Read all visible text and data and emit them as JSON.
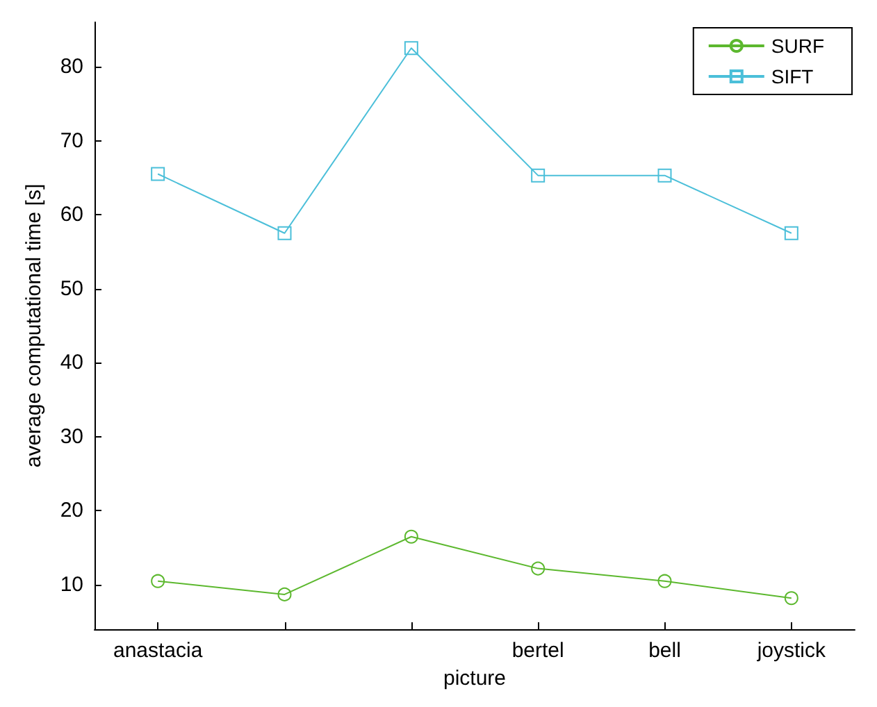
{
  "chart_data": {
    "type": "line",
    "xlabel": "picture",
    "ylabel": "average computational time [s]",
    "categories": [
      "anastacia",
      null,
      null,
      "bertel",
      "bell",
      "joystick"
    ],
    "series": [
      {
        "name": "SURF",
        "color": "#5cb82e",
        "marker": "circle",
        "values": [
          10.5,
          8.7,
          16.5,
          12.2,
          10.5,
          8.2
        ]
      },
      {
        "name": "SIFT",
        "color": "#4bbfd9",
        "marker": "square",
        "values": [
          65.5,
          57.5,
          82.5,
          65.3,
          65.3,
          57.5
        ]
      }
    ],
    "ylim": [
      4,
      86
    ],
    "yticks": [
      10,
      20,
      30,
      40,
      50,
      60,
      70,
      80
    ],
    "grid": false,
    "legend": "top right",
    "line_style": "solid"
  }
}
